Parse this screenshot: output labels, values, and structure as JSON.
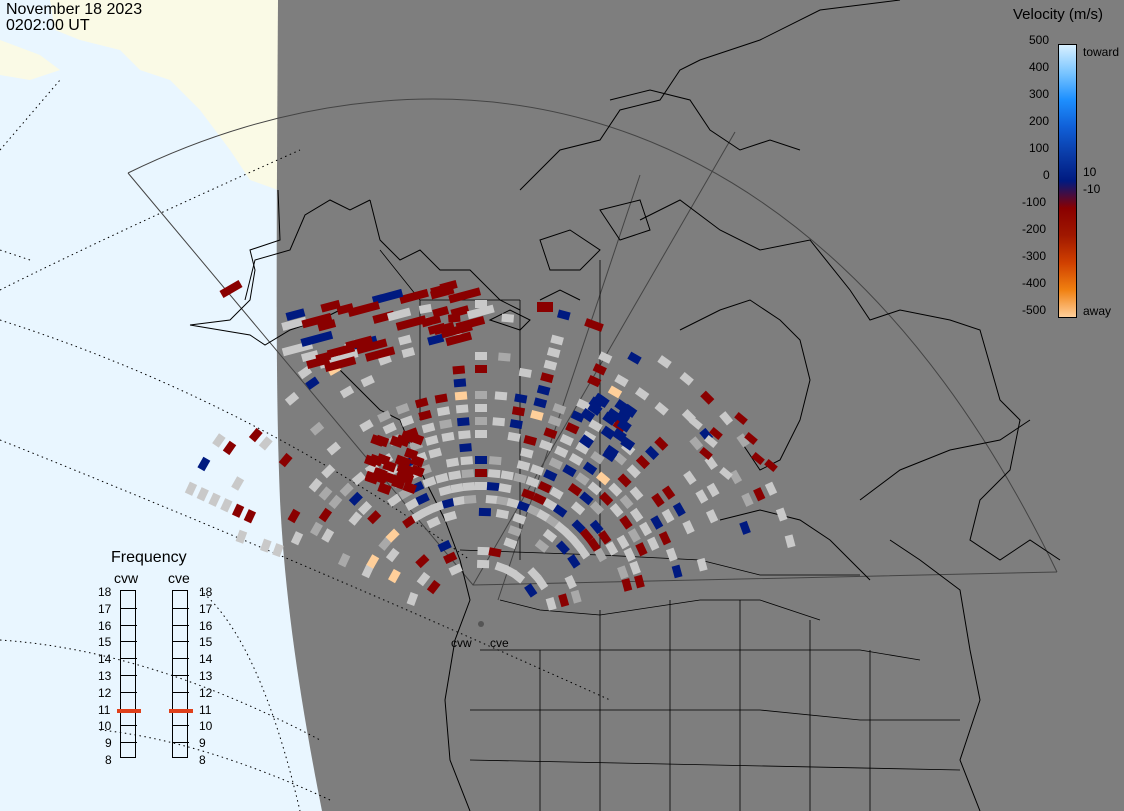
{
  "header": {
    "date": "November 18 2023",
    "time": "0202:00 UT"
  },
  "legend": {
    "title": "Velocity (m/s)",
    "ticks": [
      "500",
      "400",
      "300",
      "200",
      "100",
      "0",
      "-100",
      "-200",
      "-300",
      "-400",
      "-500"
    ],
    "ticks_right": [
      "10",
      "-10"
    ],
    "toward": "toward",
    "away": "away",
    "colors": [
      "#d8f0ff",
      "#7cc6ff",
      "#1e90ff",
      "#1060d8",
      "#0a3ca8",
      "#001a80",
      "#8a0000",
      "#a01800",
      "#d04000",
      "#f08010",
      "#ffcf9a"
    ]
  },
  "frequency": {
    "title": "Frequency",
    "radars": [
      "cvw",
      "cve"
    ],
    "scale": [
      "18",
      "17",
      "16",
      "15",
      "14",
      "13",
      "12",
      "11",
      "10",
      "9",
      "8"
    ],
    "selected_mhz": [
      10.8,
      10.8
    ],
    "marker_color": "#e0401a"
  },
  "map": {
    "radar_sites": [
      "cvw",
      "cve"
    ],
    "colors": {
      "ocean": "#e9f6ff",
      "land_sunlit": "#fafae6",
      "night": "#7e7e7e",
      "ground_scatter": "#c9c9c9",
      "toward": "#001a80",
      "away": "#8a0000"
    }
  }
}
